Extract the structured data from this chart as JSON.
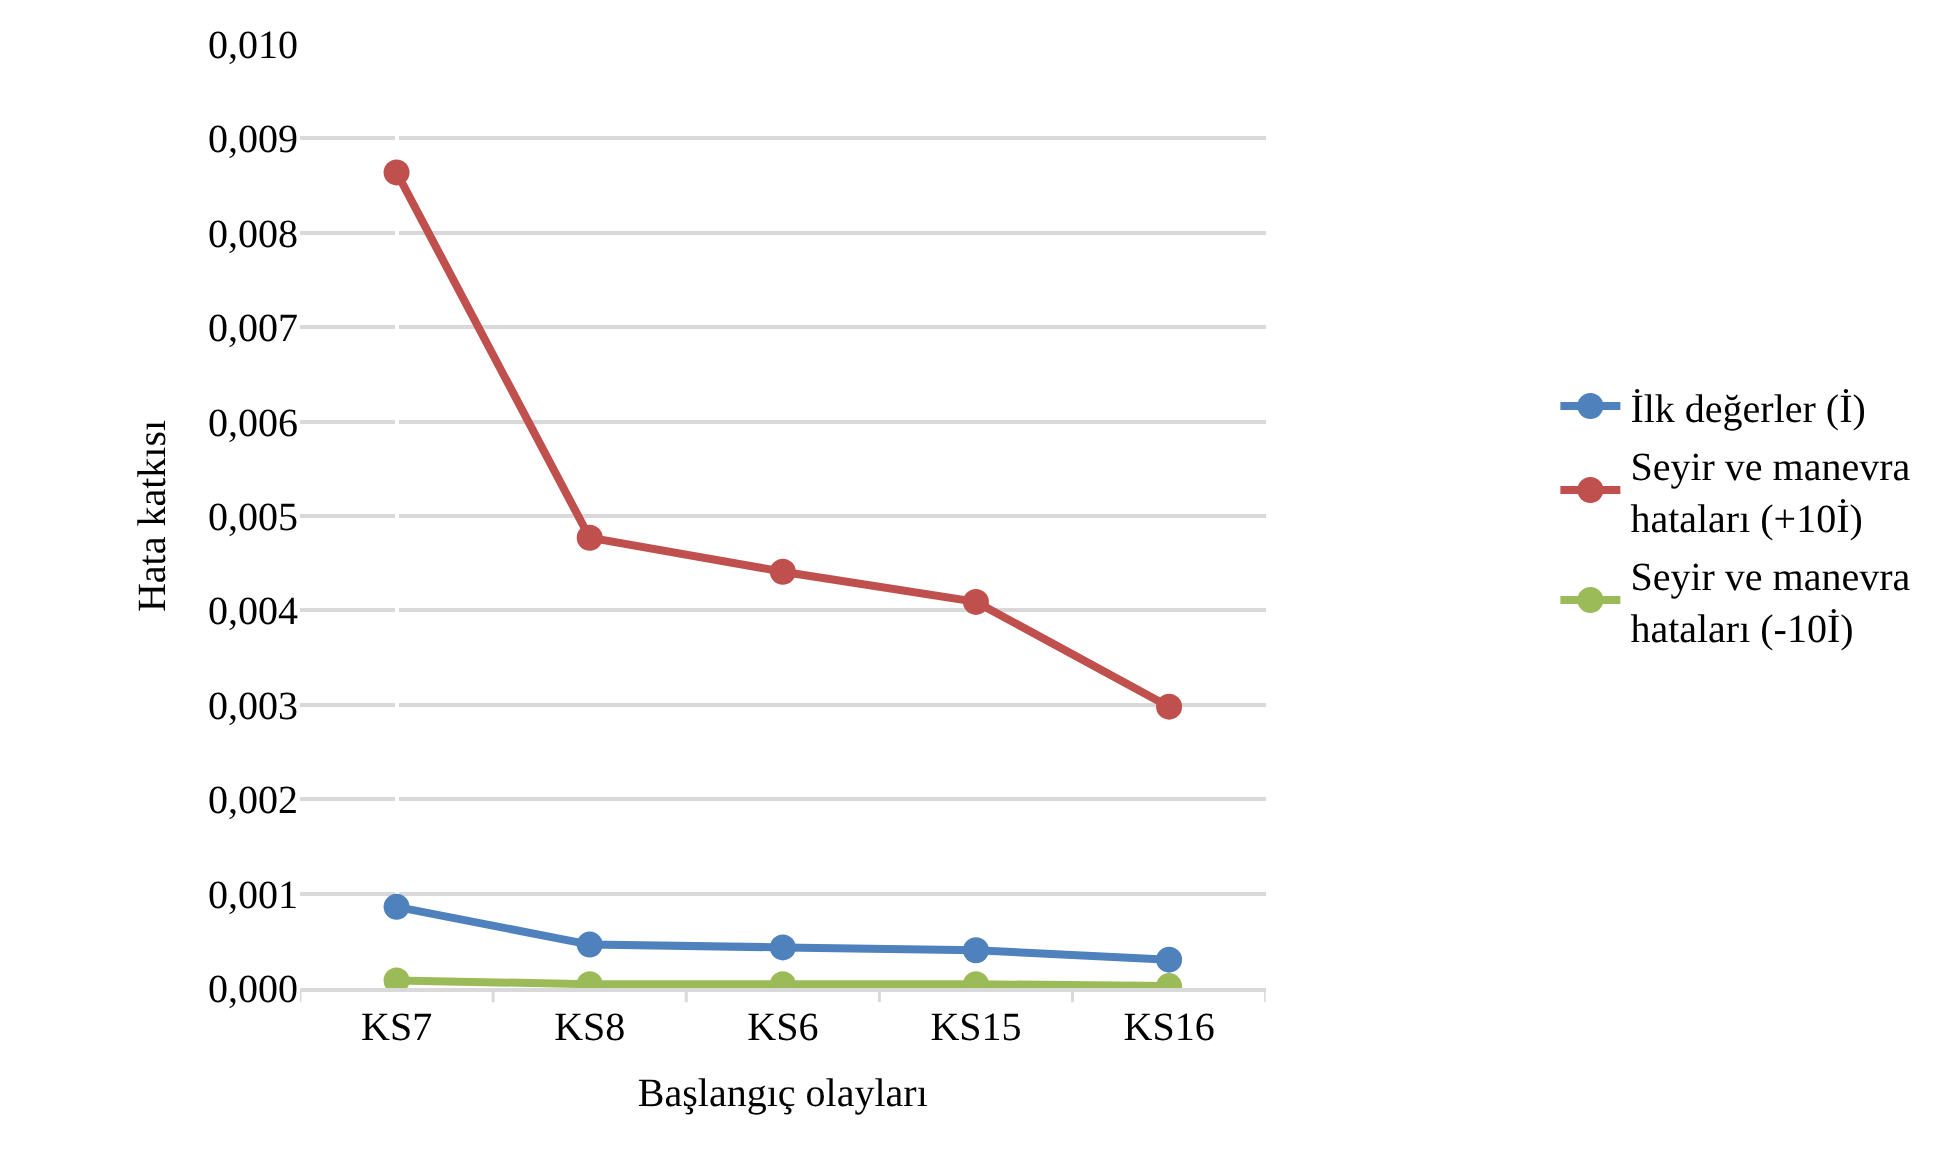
{
  "chart_data": {
    "type": "line",
    "xlabel": "Başlangıç olayları",
    "ylabel": "Hata katkısı",
    "categories": [
      "KS7",
      "KS8",
      "KS6",
      "KS15",
      "KS16"
    ],
    "series": [
      {
        "name": "İlk değerler (İ)",
        "color": "#4f81bd",
        "values": [
          0.00086,
          0.00046,
          0.00043,
          0.0004,
          0.0003
        ]
      },
      {
        "name": "Seyir ve manevra\nhataları (+10İ)",
        "color": "#c0504d",
        "values": [
          0.00864,
          0.00477,
          0.00441,
          0.00409,
          0.00298
        ]
      },
      {
        "name": "Seyir ve manevra\nhataları (-10İ)",
        "color": "#9bbb59",
        "values": [
          8e-05,
          4e-05,
          4e-05,
          4e-05,
          2e-05
        ]
      }
    ],
    "ylim": [
      0,
      0.01
    ],
    "yticks": [
      {
        "value": 0,
        "label": "0,000"
      },
      {
        "value": 0.001,
        "label": "0,001"
      },
      {
        "value": 0.002,
        "label": "0,002"
      },
      {
        "value": 0.003,
        "label": "0,003"
      },
      {
        "value": 0.004,
        "label": "0,004"
      },
      {
        "value": 0.005,
        "label": "0,005"
      },
      {
        "value": 0.006,
        "label": "0,006"
      },
      {
        "value": 0.007,
        "label": "0,007"
      },
      {
        "value": 0.008,
        "label": "0,008"
      },
      {
        "value": 0.009,
        "label": "0,009"
      },
      {
        "value": 0.01,
        "label": "0,010"
      }
    ],
    "grid": "y",
    "legend": "right",
    "marker": "circle",
    "line_style": "solid"
  }
}
